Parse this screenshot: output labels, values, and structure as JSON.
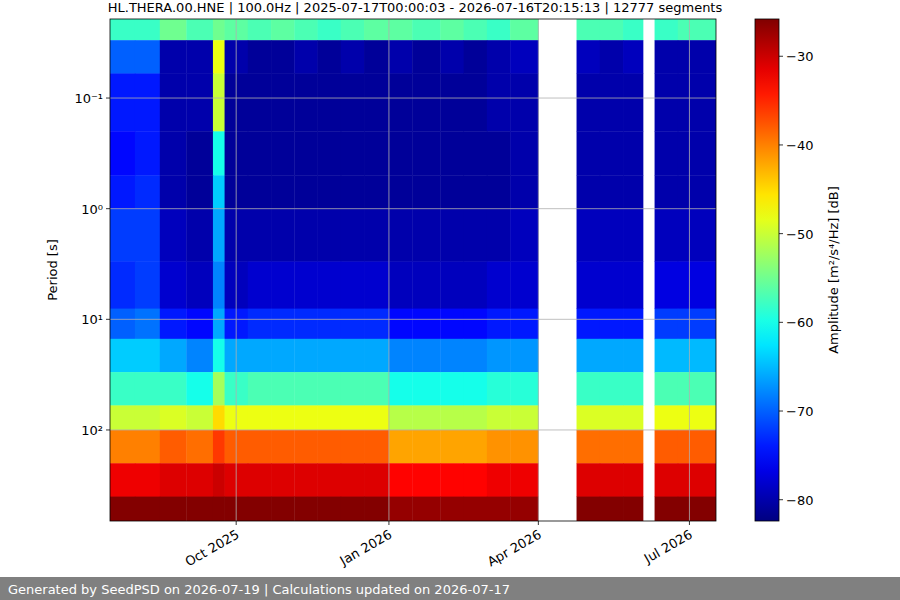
{
  "chart_data": {
    "type": "heatmap",
    "title": "HL.THERA.00.HNE | 100.0Hz | 2025-07-17T00:00:03 - 2026-07-16T20:15:13 | 12777 segments",
    "y_label": "Period [s]",
    "footer": "Generated by SeedPSD on 2026-07-19 | Calculations updated on 2026-07-17",
    "log": "y",
    "grid": true,
    "x": [
      "2025-07-17",
      "2025-08-01",
      "2025-08-16",
      "2025-09-01",
      "2025-09-17",
      "2025-09-24",
      "2025-10-08",
      "2025-10-22",
      "2025-11-05",
      "2025-11-19",
      "2025-12-03",
      "2025-12-17",
      "2026-01-01",
      "2026-01-15",
      "2026-02-01",
      "2026-02-15",
      "2026-03-01",
      "2026-03-15",
      "2026-04-01",
      "2026-04-24",
      "2026-05-08",
      "2026-05-22",
      "2026-06-03",
      "2026-06-10",
      "2026-06-24",
      "2026-07-17"
    ],
    "y": [
      0.0193,
      0.03,
      0.06,
      0.2,
      0.5,
      1,
      3,
      8,
      15,
      30,
      60,
      100,
      200,
      400,
      665
    ],
    "xlim": [
      "2025-07-17",
      "2026-07-17"
    ],
    "ylim": [
      0.0193,
      665
    ],
    "xticks": [
      {
        "value": "2025-10",
        "label": "Oct 2025"
      },
      {
        "value": "2026-01",
        "label": "Jan 2026"
      },
      {
        "value": "2026-04",
        "label": "Apr 2026"
      },
      {
        "value": "2026-07",
        "label": "Jul 2026"
      }
    ],
    "yticks": [
      {
        "value": 0.1,
        "label": "10⁻¹"
      },
      {
        "value": 1,
        "label": "10⁰"
      },
      {
        "value": 10,
        "label": "10¹"
      },
      {
        "value": 100,
        "label": "10²"
      }
    ],
    "values": [
      [
        -58,
        -58,
        -55,
        -57,
        -55,
        -56,
        -57,
        -56,
        -57,
        -58,
        -57,
        -56,
        -56,
        -57,
        -56,
        -57,
        -58,
        -56,
        null,
        -57,
        -57,
        -58,
        null,
        -58,
        -57
      ],
      [
        -70,
        -70,
        -80,
        -80,
        -48,
        -80,
        -81,
        -81,
        -80,
        -81,
        -80,
        -81,
        -80,
        -81,
        -80,
        -81,
        -80,
        -79,
        null,
        -79,
        -80,
        -79,
        null,
        -80,
        -80
      ],
      [
        -74,
        -74,
        -80,
        -80,
        -50,
        -81,
        -81,
        -81,
        -81,
        -81,
        -81,
        -81,
        -81,
        -81,
        -81,
        -81,
        -80,
        -80,
        null,
        -80,
        -80,
        -80,
        null,
        -80,
        -80
      ],
      [
        -75,
        -74,
        -80,
        -81,
        -60,
        -81,
        -81,
        -81,
        -81,
        -81,
        -81,
        -81,
        -81,
        -81,
        -81,
        -81,
        -81,
        -80,
        null,
        -80,
        -80,
        -80,
        null,
        -80,
        -80
      ],
      [
        -74,
        -73,
        -80,
        -81,
        -64,
        -81,
        -81,
        -81,
        -81,
        -81,
        -81,
        -81,
        -81,
        -81,
        -81,
        -81,
        -81,
        -80,
        null,
        -80,
        -80,
        -80,
        null,
        -80,
        -80
      ],
      [
        -72,
        -72,
        -79,
        -80,
        -66,
        -80,
        -80,
        -80,
        -80,
        -80,
        -80,
        -80,
        -80,
        -80,
        -80,
        -80,
        -80,
        -79,
        null,
        -79,
        -79,
        -79,
        null,
        -79,
        -79
      ],
      [
        -73,
        -72,
        -78,
        -79,
        -68,
        -79,
        -78,
        -78,
        -78,
        -78,
        -78,
        -78,
        -79,
        -79,
        -79,
        -79,
        -78,
        -78,
        null,
        -78,
        -78,
        -78,
        null,
        -77,
        -77
      ],
      [
        -70,
        -69,
        -74,
        -75,
        -66,
        -74,
        -73,
        -73,
        -73,
        -73,
        -73,
        -73,
        -75,
        -75,
        -75,
        -75,
        -74,
        -74,
        null,
        -74,
        -74,
        -74,
        null,
        -72,
        -72
      ],
      [
        -64,
        -64,
        -66,
        -68,
        -60,
        -66,
        -66,
        -66,
        -66,
        -66,
        -66,
        -66,
        -68,
        -68,
        -68,
        -68,
        -67,
        -67,
        null,
        -66,
        -66,
        -66,
        null,
        -65,
        -65
      ],
      [
        -58,
        -58,
        -58,
        -60,
        -52,
        -58,
        -57,
        -57,
        -57,
        -57,
        -57,
        -57,
        -60,
        -60,
        -60,
        -60,
        -59,
        -59,
        null,
        -58,
        -58,
        -58,
        null,
        -57,
        -57
      ],
      [
        -50,
        -50,
        -49,
        -50,
        -45,
        -48,
        -48,
        -48,
        -48,
        -48,
        -48,
        -48,
        -51,
        -51,
        -51,
        -51,
        -50,
        -50,
        null,
        -49,
        -49,
        -49,
        null,
        -48,
        -48
      ],
      [
        -40,
        -40,
        -38,
        -39,
        -36,
        -38,
        -38,
        -38,
        -38,
        -38,
        -38,
        -38,
        -42,
        -42,
        -42,
        -42,
        -41,
        -41,
        null,
        -39,
        -39,
        -39,
        null,
        -38,
        -38
      ],
      [
        -32,
        -32,
        -31,
        -31,
        -30,
        -31,
        -31,
        -31,
        -31,
        -31,
        -31,
        -31,
        -33,
        -33,
        -33,
        -33,
        -32,
        -32,
        null,
        -31,
        -31,
        -31,
        null,
        -31,
        -31
      ],
      [
        -26,
        -26,
        -26,
        -26,
        -26,
        -26,
        -26,
        -26,
        -26,
        -26,
        -26,
        -26,
        -27,
        -27,
        -27,
        -27,
        -27,
        -27,
        null,
        -26,
        -26,
        -26,
        null,
        -26,
        -26
      ]
    ],
    "colorbar": {
      "label": "Amplitude [m²/s⁴/Hz] [dB]",
      "lim": [
        -82.4,
        -25.8
      ],
      "ticks": [
        {
          "value": -80,
          "label": "−80"
        },
        {
          "value": -70,
          "label": "−70"
        },
        {
          "value": -60,
          "label": "−60"
        },
        {
          "value": -50,
          "label": "−50"
        },
        {
          "value": -40,
          "label": "−40"
        },
        {
          "value": -30,
          "label": "−30"
        }
      ]
    }
  }
}
